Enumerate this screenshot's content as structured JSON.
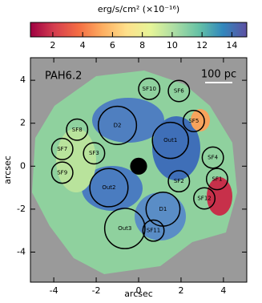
{
  "chart_data": {
    "type": "image",
    "colorbar_label": "erg/s/cm² (×10⁻¹⁶)",
    "clim": [
      0.5,
      15
    ],
    "cticks": [
      2,
      4,
      6,
      8,
      10,
      12,
      14
    ],
    "colormap": [
      "#9e0142",
      "#d53e4f",
      "#f46d43",
      "#fdae61",
      "#fee08b",
      "#e6f598",
      "#abdda4",
      "#66c2a5",
      "#3288bd",
      "#5e4fa2"
    ],
    "band_label": "PAH6.2",
    "scale_label": "100 pc",
    "xlabel": "arcsec",
    "ylabel": "arcsec",
    "xlim": [
      -5.1,
      5.1
    ],
    "ylim": [
      -5.4,
      5.05
    ],
    "xticks": [
      -4,
      -2,
      0,
      2,
      4
    ],
    "yticks": [
      -4,
      -2,
      0,
      2,
      4
    ],
    "nucleus": {
      "x": 0,
      "y": 0,
      "r": 0.4
    },
    "regions": [
      {
        "label": "SF10",
        "x": 0.5,
        "y": 3.6,
        "r": 0.5
      },
      {
        "label": "SF6",
        "x": 1.9,
        "y": 3.5,
        "r": 0.5
      },
      {
        "label": "SF5",
        "x": 2.6,
        "y": 2.1,
        "r": 0.5
      },
      {
        "label": "D2",
        "x": -1.0,
        "y": 1.9,
        "r": 0.9
      },
      {
        "label": "SF8",
        "x": -2.9,
        "y": 1.7,
        "r": 0.5
      },
      {
        "label": "Out1",
        "x": 1.5,
        "y": 1.2,
        "r": 0.85
      },
      {
        "label": "SF7",
        "x": -3.6,
        "y": 0.8,
        "r": 0.5
      },
      {
        "label": "SF3",
        "x": -2.1,
        "y": 0.6,
        "r": 0.5
      },
      {
        "label": "SF4",
        "x": 3.5,
        "y": 0.4,
        "r": 0.5
      },
      {
        "label": "SF9",
        "x": -3.6,
        "y": -0.3,
        "r": 0.5
      },
      {
        "label": "SF1",
        "x": 3.7,
        "y": -0.6,
        "r": 0.5
      },
      {
        "label": "SF2",
        "x": 1.9,
        "y": -0.7,
        "r": 0.5
      },
      {
        "label": "Out2",
        "x": -1.4,
        "y": -1.0,
        "r": 0.9
      },
      {
        "label": "SF12",
        "x": 3.1,
        "y": -1.5,
        "r": 0.5
      },
      {
        "label": "D1",
        "x": 1.15,
        "y": -2.0,
        "r": 0.8
      },
      {
        "label": "Out3",
        "x": -0.65,
        "y": -2.9,
        "r": 0.95
      },
      {
        "label": "SF11",
        "x": 0.7,
        "y": -3.0,
        "r": 0.5
      }
    ]
  }
}
